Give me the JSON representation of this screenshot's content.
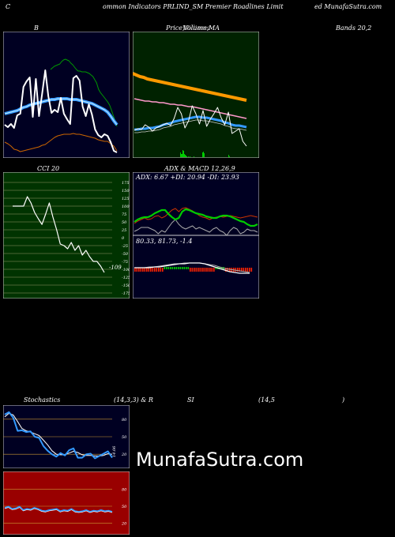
{
  "header": {
    "left": "C",
    "center": "ommon  Indicators PRLIND_SM Premier Roadlines Limit",
    "right": "ed MunafaSutra.com"
  },
  "bands_panel": {
    "label_b": "B"
  },
  "price_panel": {
    "label": "Price,",
    "label2": "Volume,",
    "label3": "MA",
    "ghost": "Williams"
  },
  "bands_label": "Bands 20,2",
  "cci_panel": {
    "label": "CCI 20",
    "current": "-109"
  },
  "adx_panel": {
    "label": "ADX  & MACD 12,26,9",
    "readout": "ADX: 6.67  +DI: 20.94  -DI: 23.93"
  },
  "macd_panel": {
    "readout": "80.33,  81.73,  -1.4"
  },
  "stoch_header": {
    "left": "Stochastics",
    "mid": "(14,3,3) & R",
    "rsi": "SI",
    "rsi_param": "(14,5",
    "close": ")"
  },
  "stoch_panel": {
    "current": "14.06"
  },
  "rsi_panel": {},
  "watermark": "MunafaSutra.com",
  "colors": {
    "bands_bg": "#000022",
    "price_bg": "#002200",
    "cci_bg": "#003300",
    "adx_bg": "#000022",
    "stoch_bg": "#000022",
    "rsi_bg": "#990000",
    "accent_orange": "#ff9900",
    "accent_blue": "#3399ff",
    "green": "#00cc00"
  },
  "chart_data": [
    {
      "type": "line",
      "name": "bollinger",
      "series": [
        {
          "name": "price",
          "values": [
            118,
            121,
            117,
            122,
            106,
            104,
            70,
            63,
            58,
            108,
            60,
            107,
            79,
            49,
            82,
            103,
            99,
            102,
            84,
            104,
            111,
            117,
            59,
            56,
            62,
            95,
            107,
            92,
            105,
            124,
            131,
            134,
            130,
            132,
            140,
            151,
            153
          ]
        },
        {
          "name": "upper",
          "values": [
            48,
            46,
            44,
            43,
            42,
            41,
            38,
            36,
            35,
            36,
            37,
            40,
            42,
            45,
            48,
            50,
            50,
            51,
            51,
            51,
            52,
            53,
            55,
            57,
            61,
            65,
            73,
            77,
            80,
            83,
            86,
            89,
            93,
            99,
            106,
            113,
            120
          ]
        },
        {
          "name": "middle",
          "values": [
            104,
            103,
            102,
            101,
            100,
            98,
            96,
            95,
            93,
            92,
            91,
            90,
            89,
            88,
            87,
            86,
            86,
            85,
            85,
            85,
            85,
            86,
            86,
            86,
            87,
            88,
            89,
            90,
            91,
            93,
            95,
            97,
            99,
            102,
            107,
            113,
            118
          ]
        },
        {
          "name": "lower",
          "values": [
            140,
            142,
            145,
            149,
            150,
            152,
            151,
            150,
            149,
            148,
            147,
            146,
            144,
            143,
            140,
            137,
            134,
            132,
            131,
            130,
            130,
            130,
            129,
            130,
            130,
            131,
            132,
            133,
            134,
            135,
            137,
            138,
            139,
            139,
            142,
            145,
            151
          ]
        }
      ]
    },
    {
      "type": "line",
      "name": "price_volume_ma",
      "series": [
        {
          "name": "ma_orange",
          "values": [
            53,
            55,
            57,
            58,
            60,
            61,
            62,
            63,
            64,
            65,
            66,
            67,
            68,
            69,
            70,
            71,
            72,
            73,
            74,
            75,
            76,
            77,
            78,
            79,
            80,
            81,
            82,
            83,
            84,
            85,
            86,
            87
          ]
        },
        {
          "name": "ma_pink",
          "values": [
            85,
            86,
            87,
            88,
            88,
            89,
            89,
            90,
            90,
            91,
            92,
            92,
            93,
            93,
            94,
            95,
            95,
            96,
            97,
            98,
            99,
            100,
            101,
            102,
            103,
            104,
            105,
            106,
            107,
            108,
            109,
            110
          ]
        },
        {
          "name": "ma_blue",
          "values": [
            124,
            124,
            123,
            123,
            122,
            122,
            121,
            120,
            118,
            117,
            116,
            114,
            113,
            112,
            111,
            110,
            109,
            108,
            108,
            109,
            109,
            110,
            111,
            112,
            113,
            115,
            116,
            118,
            119,
            119,
            120,
            121
          ]
        },
        {
          "name": "price",
          "values": [
            125,
            123,
            124,
            118,
            121,
            126,
            122,
            120,
            118,
            116,
            119,
            110,
            96,
            104,
            122,
            113,
            94,
            104,
            117,
            100,
            120,
            111,
            104,
            96,
            109,
            118,
            102,
            129,
            126,
            123,
            139,
            145
          ]
        },
        {
          "name": "volume",
          "values": [
            0,
            0,
            0,
            0,
            0,
            0,
            0,
            0,
            0,
            0,
            0,
            0,
            0,
            0,
            0,
            0,
            0,
            0,
            0,
            0,
            0,
            0,
            0,
            0,
            0,
            0,
            0,
            0,
            0,
            0,
            0,
            0,
            0,
            0,
            0,
            0,
            0,
            0,
            0,
            0,
            0,
            0,
            0,
            0,
            0,
            0,
            0,
            0,
            0,
            0,
            0,
            0,
            0,
            0,
            0,
            0,
            0,
            0,
            6,
            4,
            4,
            9,
            8,
            4,
            3,
            2,
            1,
            0,
            1,
            0,
            1,
            0,
            0,
            0,
            0,
            1,
            0,
            0,
            0,
            0,
            0,
            0,
            0,
            0,
            0,
            0,
            6,
            7,
            5,
            0,
            0,
            0,
            0,
            0,
            0,
            0,
            0,
            0,
            0,
            0,
            0,
            0,
            0,
            0,
            0,
            0,
            0,
            0,
            0,
            0,
            0,
            0,
            0,
            0,
            0,
            0,
            0,
            0,
            0,
            3,
            1,
            0,
            0,
            0,
            0,
            0,
            0,
            0,
            0,
            0,
            0,
            0,
            0,
            0,
            0,
            0,
            0,
            0,
            0,
            0,
            0,
            0,
            0,
            0,
            0,
            0,
            0,
            0,
            0,
            0,
            0,
            0,
            0,
            0,
            0,
            0,
            0,
            0,
            0,
            0
          ]
        }
      ]
    },
    {
      "type": "line",
      "name": "cci",
      "y_ticks": [
        175,
        150,
        125,
        100,
        75,
        50,
        25,
        0,
        -25,
        -50,
        -75,
        -100,
        -125,
        -150,
        -175
      ],
      "ylim": [
        -175,
        175
      ],
      "series": [
        {
          "name": "cci",
          "values": [
            100,
            100,
            100,
            100,
            130,
            110,
            80,
            60,
            42,
            75,
            110,
            65,
            25,
            -20,
            -25,
            -35,
            -15,
            -40,
            -25,
            -55,
            -40,
            -60,
            -75,
            -75,
            -90,
            -110
          ]
        }
      ]
    },
    {
      "type": "line",
      "name": "adx",
      "series": [
        {
          "name": "adx",
          "values": [
            63,
            60,
            58,
            57,
            57,
            55,
            52,
            50,
            48,
            48,
            53,
            57,
            60,
            58,
            50,
            47,
            48,
            50,
            52,
            53,
            54,
            56,
            57,
            58,
            58,
            56,
            55,
            55,
            56,
            58,
            60,
            62,
            63,
            66,
            68,
            68,
            66
          ]
        },
        {
          "name": "plus_di",
          "values": [
            65,
            62,
            60,
            58,
            60,
            59,
            56,
            55,
            58,
            56,
            52,
            48,
            46,
            50,
            46,
            45,
            47,
            49,
            52,
            55,
            57,
            58,
            60,
            58,
            57,
            56,
            57,
            56,
            55,
            56,
            57,
            58,
            57,
            56,
            55,
            56,
            57
          ]
        },
        {
          "name": "minus_di",
          "values": [
            75,
            73,
            70,
            70,
            70,
            72,
            74,
            78,
            74,
            76,
            70,
            64,
            60,
            66,
            70,
            72,
            70,
            68,
            72,
            70,
            72,
            74,
            76,
            72,
            70,
            74,
            76,
            80,
            74,
            70,
            72,
            78,
            76,
            72,
            74,
            74,
            76
          ]
        }
      ]
    },
    {
      "type": "line",
      "name": "macd",
      "series": [
        {
          "name": "macd",
          "values": [
            41,
            41,
            41,
            41,
            40,
            40,
            39,
            38,
            37,
            36,
            36,
            35,
            35,
            35,
            36,
            38,
            40,
            42,
            44,
            46,
            47,
            48,
            48,
            48
          ]
        },
        {
          "name": "signal",
          "values": [
            41,
            41,
            41,
            40,
            40,
            39,
            38,
            37,
            36,
            36,
            35,
            35,
            35,
            35,
            36,
            37,
            38,
            40,
            42,
            43,
            44,
            45,
            46,
            47
          ]
        }
      ]
    },
    {
      "type": "line",
      "name": "stochastics",
      "y_ticks": [
        80,
        50,
        20
      ],
      "ylim": [
        0,
        100
      ],
      "series": [
        {
          "name": "k",
          "values": [
            88,
            92,
            82,
            60,
            61,
            58,
            59,
            50,
            48,
            34,
            26,
            20,
            16,
            22,
            18,
            27,
            30,
            14,
            14,
            20,
            21,
            13,
            17,
            21,
            25,
            14
          ]
        },
        {
          "name": "d",
          "values": [
            84,
            90,
            87,
            76,
            64,
            60,
            58,
            55,
            52,
            44,
            36,
            26,
            20,
            19,
            19,
            22,
            25,
            23,
            19,
            18,
            18,
            17,
            17,
            18,
            21,
            20
          ]
        }
      ]
    },
    {
      "type": "line",
      "name": "rsi",
      "y_ticks": [
        80,
        50,
        20
      ],
      "ylim": [
        0,
        100
      ],
      "series": [
        {
          "name": "rsi",
          "values": [
            46,
            48,
            44,
            45,
            48,
            42,
            44,
            43,
            46,
            44,
            41,
            40,
            42,
            43,
            44,
            40,
            42,
            41,
            44,
            40,
            39,
            40,
            42,
            39,
            41,
            40,
            42,
            40,
            41,
            39
          ]
        }
      ]
    }
  ]
}
